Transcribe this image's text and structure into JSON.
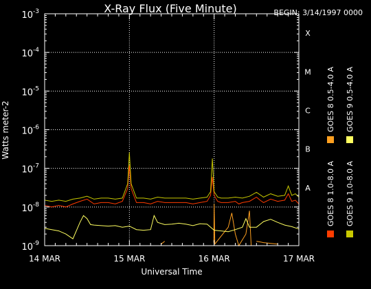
{
  "chart_data": {
    "type": "line",
    "title": "X-Ray Flux (Five Minute)",
    "begin_label": "BEGIN: 3/14/1997 0000",
    "xlabel": "Universal Time",
    "ylabel": "Watts meter-2",
    "yscale": "log",
    "ylim": [
      1e-09,
      0.001
    ],
    "xlim": [
      0,
      72
    ],
    "x_unit": "hours since 14 MAR 1997 0000 UT",
    "x_ticks": [
      {
        "x": 0,
        "label": "14 MAR"
      },
      {
        "x": 24,
        "label": "15 MAR"
      },
      {
        "x": 48,
        "label": "16 MAR"
      },
      {
        "x": 72,
        "label": "17 MAR"
      }
    ],
    "y_ticks": [
      {
        "base": "10",
        "exp": "-9",
        "value": 1e-09
      },
      {
        "base": "10",
        "exp": "-8",
        "value": 1e-08
      },
      {
        "base": "10",
        "exp": "-7",
        "value": 1e-07
      },
      {
        "base": "10",
        "exp": "-6",
        "value": 1e-06
      },
      {
        "base": "10",
        "exp": "-5",
        "value": 1e-05
      },
      {
        "base": "10",
        "exp": "-4",
        "value": 0.0001
      },
      {
        "base": "10",
        "exp": "-3",
        "value": 0.001
      }
    ],
    "flare_classes": [
      {
        "label": "A",
        "value": 1e-08
      },
      {
        "label": "B",
        "value": 1e-07
      },
      {
        "label": "C",
        "value": 1e-06
      },
      {
        "label": "M",
        "value": 1e-05
      },
      {
        "label": "X",
        "value": 0.0001
      }
    ],
    "grid": {
      "horizontal_dotted": true,
      "vertical_dotted_days": true
    },
    "legend_position": "right, vertical",
    "series": [
      {
        "name": "GOES 8 1.0-8.0 A",
        "color": "#ff3c00",
        "x": [
          0,
          2,
          4,
          6,
          8,
          10,
          12,
          14,
          16,
          18,
          20,
          22,
          23.5,
          24,
          24.5,
          26,
          28,
          30,
          32,
          34,
          36,
          38,
          40,
          42,
          44,
          46,
          47,
          47.5,
          48,
          49,
          50,
          52,
          54,
          55,
          56,
          58,
          60,
          61,
          62,
          64,
          66,
          68,
          69,
          70,
          71,
          72
        ],
        "y": [
          1.1e-08,
          1e-08,
          1.1e-08,
          1e-08,
          1.2e-08,
          1.4e-08,
          1.6e-08,
          1.2e-08,
          1.3e-08,
          1.3e-08,
          1.2e-08,
          1.4e-08,
          3e-08,
          1.2e-07,
          3e-08,
          1.3e-08,
          1.3e-08,
          1.2e-08,
          1.4e-08,
          1.3e-08,
          1.3e-08,
          1.3e-08,
          1.3e-08,
          1.2e-08,
          1.3e-08,
          1.4e-08,
          2e-08,
          6e-08,
          2e-08,
          1.4e-08,
          1.3e-08,
          1.3e-08,
          1.4e-08,
          1.2e-08,
          1.3e-08,
          1.4e-08,
          1.8e-08,
          1.5e-08,
          1.3e-08,
          1.6e-08,
          1.4e-08,
          1.5e-08,
          2.2e-08,
          1.4e-08,
          1.5e-08,
          1.2e-08
        ]
      },
      {
        "name": "GOES 8 0.5-4.0 A",
        "color": "#ffa020",
        "x": [
          0,
          24,
          24.1,
          30,
          33,
          34,
          40,
          47.9,
          48,
          48.2,
          52,
          53,
          54,
          55,
          57,
          58,
          58.5,
          59,
          60,
          62,
          66,
          72
        ],
        "y": [
          null,
          null,
          2e-08,
          null,
          1.1e-09,
          1.3e-09,
          null,
          1.2e-09,
          1.2e-08,
          1.1e-09,
          3e-09,
          7e-09,
          2e-09,
          1e-09,
          2e-09,
          8e-09,
          1e-09,
          null,
          1.3e-09,
          1.2e-09,
          1.1e-09,
          null
        ]
      },
      {
        "name": "GOES 9 0.5-4.0 A",
        "color": "#ffff60",
        "x": [
          0,
          2,
          4,
          6,
          8,
          10,
          11,
          12,
          13,
          14,
          16,
          18,
          20,
          22,
          24,
          26,
          28,
          30,
          31,
          32,
          34,
          36,
          38,
          40,
          42,
          44,
          46,
          48,
          50,
          52,
          54,
          56,
          57,
          58,
          60,
          62,
          64,
          66,
          68,
          70,
          72
        ],
        "y": [
          2.8e-09,
          2.6e-09,
          2.4e-09,
          2e-09,
          1.5e-09,
          4e-09,
          6e-09,
          5e-09,
          3.5e-09,
          3.4e-09,
          3.3e-09,
          3.2e-09,
          3.3e-09,
          3e-09,
          3.2e-09,
          2.6e-09,
          2.5e-09,
          2.6e-09,
          6e-09,
          4e-09,
          3.5e-09,
          3.6e-09,
          3.8e-09,
          3.6e-09,
          3.3e-09,
          3.7e-09,
          3.6e-09,
          2.5e-09,
          2.4e-09,
          2.3e-09,
          2.6e-09,
          3e-09,
          5e-09,
          3e-09,
          3e-09,
          4.2e-09,
          4.8e-09,
          4e-09,
          3.4e-09,
          3.1e-09,
          2.7e-09
        ]
      },
      {
        "name": "GOES 9 1.0-8.0 A",
        "color": "#c8c800",
        "x": [
          0,
          2,
          4,
          6,
          8,
          10,
          12,
          14,
          16,
          18,
          20,
          22,
          23.5,
          24,
          24.5,
          26,
          28,
          30,
          32,
          34,
          36,
          38,
          40,
          42,
          44,
          46,
          47,
          47.5,
          48,
          49,
          50,
          52,
          54,
          56,
          58,
          60,
          62,
          64,
          66,
          68,
          69,
          70,
          71,
          72
        ],
        "y": [
          1.5e-08,
          1.4e-08,
          1.5e-08,
          1.4e-08,
          1.6e-08,
          1.7e-08,
          1.9e-08,
          1.6e-08,
          1.7e-08,
          1.7e-08,
          1.6e-08,
          1.7e-08,
          4e-08,
          2.6e-07,
          4e-08,
          1.7e-08,
          1.7e-08,
          1.6e-08,
          1.8e-08,
          1.7e-08,
          1.7e-08,
          1.7e-08,
          1.7e-08,
          1.6e-08,
          1.7e-08,
          1.8e-08,
          2.5e-08,
          1.8e-07,
          2.5e-08,
          1.8e-08,
          1.7e-08,
          1.7e-08,
          1.8e-08,
          1.7e-08,
          1.9e-08,
          2.4e-08,
          1.8e-08,
          2.2e-08,
          1.9e-08,
          2e-08,
          3.5e-08,
          2e-08,
          2.2e-08,
          1.8e-08
        ]
      }
    ]
  }
}
